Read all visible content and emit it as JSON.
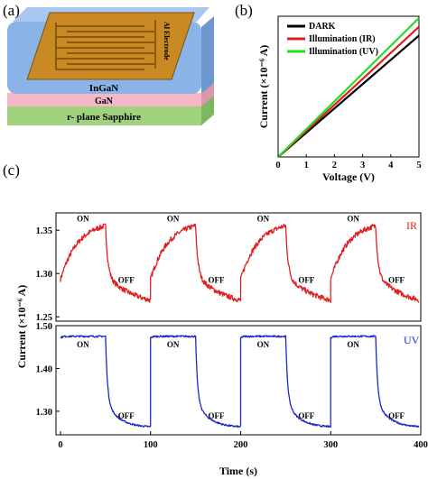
{
  "panel_labels": {
    "a": "(a)",
    "b": "(b)",
    "c": "(c)"
  },
  "device": {
    "electrode_label": "Al Electrode",
    "layers": [
      "InGaN",
      "GaN",
      "r- plane Sapphire"
    ],
    "colors": {
      "electrode": "#c98a24",
      "electrode_dark": "#8a5a10",
      "ingan": "#8ab4e8",
      "gan": "#f4b8c6",
      "sapphire": "#9fd17e"
    }
  },
  "chart_data": [
    {
      "id": "iv",
      "type": "line",
      "title": "",
      "xlabel": "Voltage (V)",
      "ylabel": "Current (×10⁻⁶ A)",
      "xlim": [
        0,
        5
      ],
      "ylim": [
        0,
        4
      ],
      "xticks": [
        "0",
        "1",
        "2",
        "3",
        "4",
        "5"
      ],
      "series": [
        {
          "name": "DARK",
          "color": "#000000",
          "x": [
            0,
            5
          ],
          "y": [
            0,
            3.45
          ]
        },
        {
          "name": "Illumination (IR)",
          "color": "#e02020",
          "x": [
            0,
            5
          ],
          "y": [
            0,
            3.7
          ]
        },
        {
          "name": "Illumination (UV)",
          "color": "#22dd22",
          "x": [
            0,
            5
          ],
          "y": [
            0,
            3.95
          ]
        }
      ],
      "legend": "top-left"
    },
    {
      "id": "ir",
      "type": "line",
      "title": "",
      "ylabel": "Current (×10⁻⁶ A)",
      "ylim": [
        1.245,
        1.37
      ],
      "yticks": [
        "1.25",
        "1.30",
        "1.35"
      ],
      "xlim": [
        -5,
        400
      ],
      "tag": "IR",
      "color": "#e02020",
      "on_label": "ON",
      "off_label": "OFF",
      "on_times": [
        0,
        100,
        200,
        300
      ],
      "off_times": [
        50,
        150,
        250,
        350
      ],
      "on_level": 1.355,
      "off_level": 1.26,
      "cycle_start": 1.262
    },
    {
      "id": "uv",
      "type": "line",
      "title": "",
      "xlabel": "Time (s)",
      "ylim": [
        1.245,
        1.5
      ],
      "yticks": [
        "1.30",
        "1.40",
        "1.50"
      ],
      "xlim": [
        -5,
        400
      ],
      "xticks": [
        "0",
        "100",
        "200",
        "300",
        "400"
      ],
      "tag": "UV",
      "color": "#1a28c8",
      "on_label": "ON",
      "off_label": "OFF",
      "on_times": [
        0,
        100,
        200,
        300
      ],
      "off_times": [
        50,
        150,
        250,
        350
      ],
      "on_level": 1.475,
      "off_level": 1.262
    }
  ]
}
